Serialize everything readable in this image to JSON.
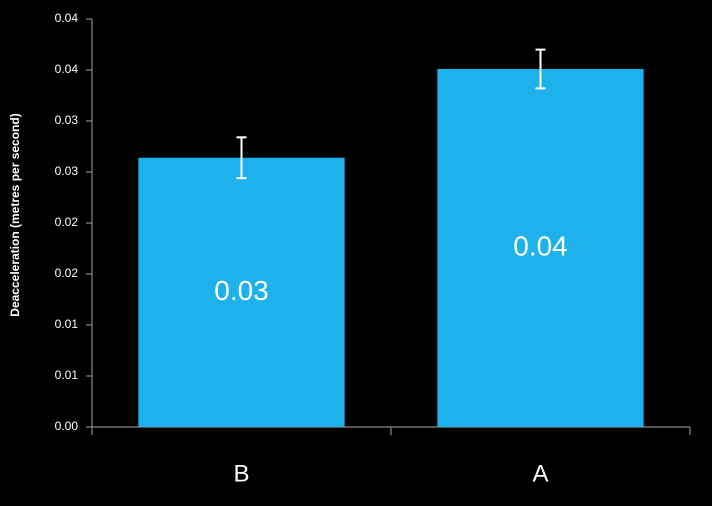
{
  "chart_data": {
    "type": "bar",
    "y_label": "Deacceleration  (metres per second)",
    "categories": [
      "B",
      "A"
    ],
    "values": [
      0.0264,
      0.0351
    ],
    "value_labels": [
      "0.03",
      "0.04"
    ],
    "errors": [
      0.002,
      0.0019
    ],
    "color": "#1eb2ec",
    "ylim": [
      0,
      0.04
    ],
    "yticks": [
      {
        "value": 0,
        "label": "0.00"
      },
      {
        "value": 0.005,
        "label": "0.01"
      },
      {
        "value": 0.01,
        "label": "0.01"
      },
      {
        "value": 0.015,
        "label": "0.02"
      },
      {
        "value": 0.02,
        "label": "0.02"
      },
      {
        "value": 0.025,
        "label": "0.03"
      },
      {
        "value": 0.03,
        "label": "0.03"
      },
      {
        "value": 0.035,
        "label": "0.04"
      },
      {
        "value": 0.04,
        "label": "0.04"
      }
    ],
    "grid": false
  }
}
